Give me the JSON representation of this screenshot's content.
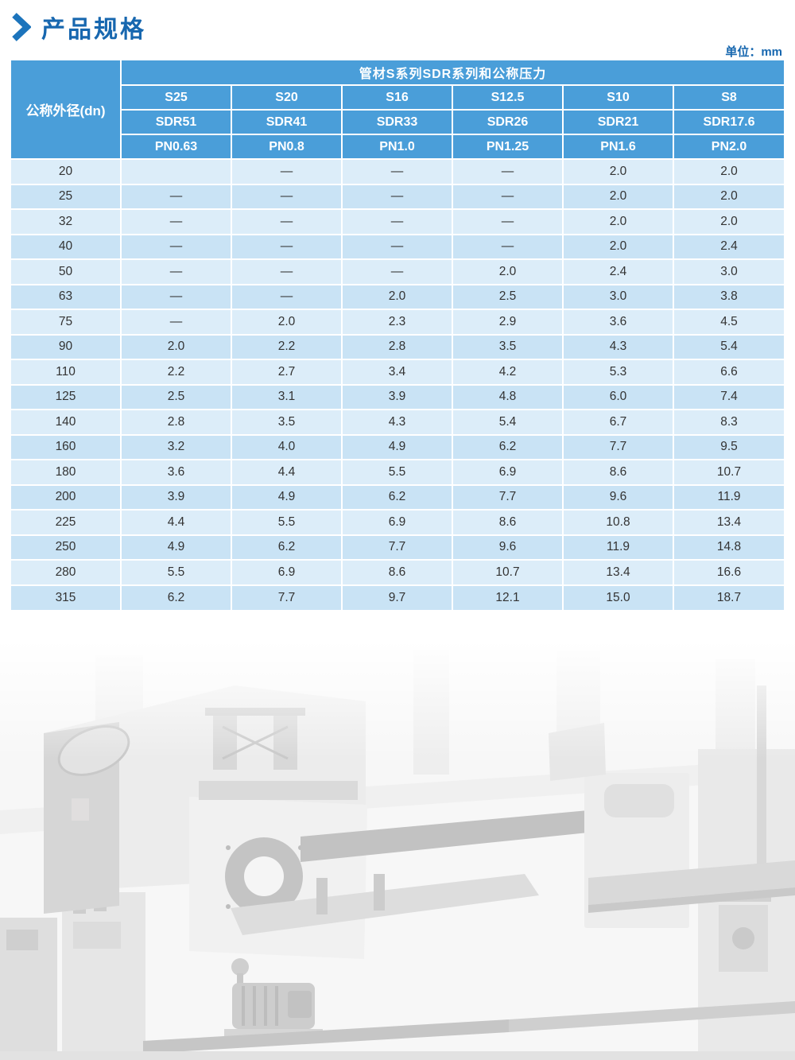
{
  "page": {
    "title": "产品规格",
    "unit_label": "单位：mm"
  },
  "table": {
    "row_header": "公称外径(dn)",
    "group_header": "管材S系列SDR系列和公称压力",
    "columns": [
      {
        "s": "S25",
        "sdr": "SDR51",
        "pn": "PN0.63"
      },
      {
        "s": "S20",
        "sdr": "SDR41",
        "pn": "PN0.8"
      },
      {
        "s": "S16",
        "sdr": "SDR33",
        "pn": "PN1.0"
      },
      {
        "s": "S12.5",
        "sdr": "SDR26",
        "pn": "PN1.25"
      },
      {
        "s": "S10",
        "sdr": "SDR21",
        "pn": "PN1.6"
      },
      {
        "s": "S8",
        "sdr": "SDR17.6",
        "pn": "PN2.0"
      }
    ],
    "rows": [
      {
        "dn": "20",
        "values": [
          "",
          "—",
          "—",
          "—",
          "2.0",
          "2.0"
        ]
      },
      {
        "dn": "25",
        "values": [
          "—",
          "—",
          "—",
          "—",
          "2.0",
          "2.0"
        ]
      },
      {
        "dn": "32",
        "values": [
          "—",
          "—",
          "—",
          "—",
          "2.0",
          "2.0"
        ]
      },
      {
        "dn": "40",
        "values": [
          "—",
          "—",
          "—",
          "—",
          "2.0",
          "2.4"
        ]
      },
      {
        "dn": "50",
        "values": [
          "—",
          "—",
          "—",
          "2.0",
          "2.4",
          "3.0"
        ]
      },
      {
        "dn": "63",
        "values": [
          "—",
          "—",
          "2.0",
          "2.5",
          "3.0",
          "3.8"
        ]
      },
      {
        "dn": "75",
        "values": [
          "—",
          "2.0",
          "2.3",
          "2.9",
          "3.6",
          "4.5"
        ]
      },
      {
        "dn": "90",
        "values": [
          "2.0",
          "2.2",
          "2.8",
          "3.5",
          "4.3",
          "5.4"
        ]
      },
      {
        "dn": "110",
        "values": [
          "2.2",
          "2.7",
          "3.4",
          "4.2",
          "5.3",
          "6.6"
        ]
      },
      {
        "dn": "125",
        "values": [
          "2.5",
          "3.1",
          "3.9",
          "4.8",
          "6.0",
          "7.4"
        ]
      },
      {
        "dn": "140",
        "values": [
          "2.8",
          "3.5",
          "4.3",
          "5.4",
          "6.7",
          "8.3"
        ]
      },
      {
        "dn": "160",
        "values": [
          "3.2",
          "4.0",
          "4.9",
          "6.2",
          "7.7",
          "9.5"
        ]
      },
      {
        "dn": "180",
        "values": [
          "3.6",
          "4.4",
          "5.5",
          "6.9",
          "8.6",
          "10.7"
        ]
      },
      {
        "dn": "200",
        "values": [
          "3.9",
          "4.9",
          "6.2",
          "7.7",
          "9.6",
          "11.9"
        ]
      },
      {
        "dn": "225",
        "values": [
          "4.4",
          "5.5",
          "6.9",
          "8.6",
          "10.8",
          "13.4"
        ]
      },
      {
        "dn": "250",
        "values": [
          "4.9",
          "6.2",
          "7.7",
          "9.6",
          "11.9",
          "14.8"
        ]
      },
      {
        "dn": "280",
        "values": [
          "5.5",
          "6.9",
          "8.6",
          "10.7",
          "13.4",
          "16.6"
        ]
      },
      {
        "dn": "315",
        "values": [
          "6.2",
          "7.7",
          "9.7",
          "12.1",
          "15.0",
          "18.7"
        ]
      }
    ]
  },
  "colors": {
    "title_blue": "#1767AF",
    "chevron_blue": "#1C74BC",
    "header_blue": "#4A9ED9",
    "row_light": "#DCEDF9",
    "row_dark": "#C9E3F5",
    "cell_text": "#333333"
  },
  "background": {
    "description": "faded grayscale photo of pipe production line machinery"
  }
}
